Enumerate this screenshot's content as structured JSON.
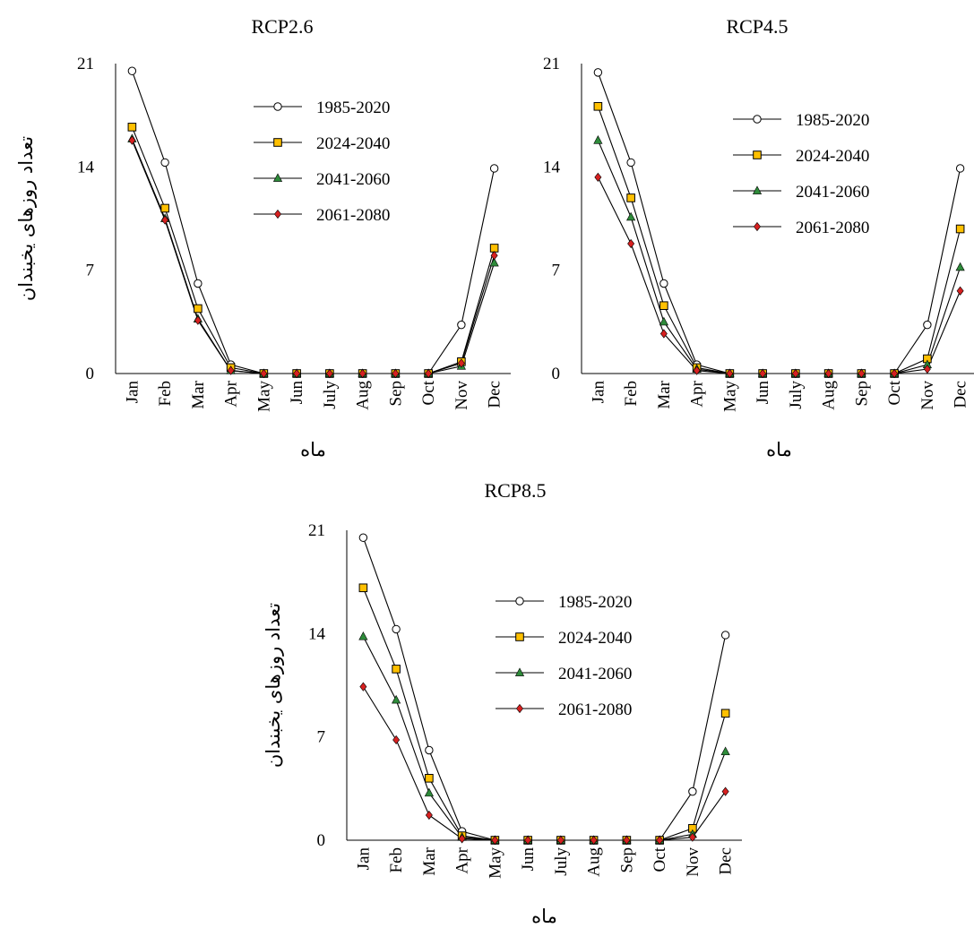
{
  "series_names": [
    "1985-2020",
    "2024-2040",
    "2041-2060",
    "2061-2080"
  ],
  "chart_data": [
    {
      "type": "line",
      "title": "RCP2.6",
      "xlabel": "ماه",
      "ylabel": "تعداد روزهای یخبندان",
      "categories": [
        "Jan",
        "Feb",
        "Mar",
        "Apr",
        "May",
        "Jun",
        "July",
        "Aug",
        "Sep",
        "Oct",
        "Nov",
        "Dec"
      ],
      "y_ticks": [
        "0",
        "7",
        "14",
        "21"
      ],
      "ylim": [
        0,
        21
      ],
      "legend_position": "top-right",
      "grid": false,
      "series": [
        {
          "name": "1985-2020",
          "values": [
            20.5,
            14.3,
            6.1,
            0.6,
            0,
            0,
            0,
            0,
            0,
            0,
            3.3,
            13.9
          ]
        },
        {
          "name": "2024-2040",
          "values": [
            16.7,
            11.2,
            4.4,
            0.4,
            0,
            0,
            0,
            0,
            0,
            0,
            0.8,
            8.5
          ]
        },
        {
          "name": "2041-2060",
          "values": [
            15.9,
            10.5,
            3.7,
            0.2,
            0,
            0,
            0,
            0,
            0,
            0,
            0.5,
            7.5
          ]
        },
        {
          "name": "2061-2080",
          "values": [
            15.8,
            10.4,
            3.6,
            0.2,
            0,
            0,
            0,
            0,
            0,
            0,
            0.7,
            8.0
          ]
        }
      ]
    },
    {
      "type": "line",
      "title": "RCP4.5",
      "xlabel": "ماه",
      "ylabel": "",
      "categories": [
        "Jan",
        "Feb",
        "Mar",
        "Apr",
        "May",
        "Jun",
        "July",
        "Aug",
        "Sep",
        "Oct",
        "Nov",
        "Dec"
      ],
      "y_ticks": [
        "0",
        "7",
        "14",
        "21"
      ],
      "ylim": [
        0,
        21
      ],
      "legend_position": "top-right",
      "grid": false,
      "series": [
        {
          "name": "1985-2020",
          "values": [
            20.4,
            14.3,
            6.1,
            0.6,
            0,
            0,
            0,
            0,
            0,
            0,
            3.3,
            13.9
          ]
        },
        {
          "name": "2024-2040",
          "values": [
            18.1,
            11.9,
            4.6,
            0.4,
            0,
            0,
            0,
            0,
            0,
            0,
            1.0,
            9.8
          ]
        },
        {
          "name": "2041-2060",
          "values": [
            15.8,
            10.6,
            3.5,
            0.3,
            0,
            0,
            0,
            0,
            0,
            0,
            0.6,
            7.2
          ]
        },
        {
          "name": "2061-2080",
          "values": [
            13.3,
            8.8,
            2.7,
            0.2,
            0,
            0,
            0,
            0,
            0,
            0,
            0.3,
            5.6
          ]
        }
      ]
    },
    {
      "type": "line",
      "title": "RCP8.5",
      "xlabel": "ماه",
      "ylabel": "تعداد روزهای یخبندان",
      "categories": [
        "Jan",
        "Feb",
        "Mar",
        "Apr",
        "May",
        "Jun",
        "July",
        "Aug",
        "Sep",
        "Oct",
        "Nov",
        "Dec"
      ],
      "y_ticks": [
        "0",
        "7",
        "14",
        "21"
      ],
      "ylim": [
        0,
        21
      ],
      "legend_position": "top-right",
      "grid": false,
      "series": [
        {
          "name": "1985-2020",
          "values": [
            20.5,
            14.3,
            6.1,
            0.6,
            0,
            0,
            0,
            0,
            0,
            0,
            3.3,
            13.9
          ]
        },
        {
          "name": "2024-2040",
          "values": [
            17.1,
            11.6,
            4.2,
            0.3,
            0,
            0,
            0,
            0,
            0,
            0,
            0.8,
            8.6
          ]
        },
        {
          "name": "2041-2060",
          "values": [
            13.8,
            9.5,
            3.2,
            0.2,
            0,
            0,
            0,
            0,
            0,
            0,
            0.4,
            6.0
          ]
        },
        {
          "name": "2061-2080",
          "values": [
            10.4,
            6.8,
            1.7,
            0.1,
            0,
            0,
            0,
            0,
            0,
            0,
            0.2,
            3.3
          ]
        }
      ]
    }
  ],
  "styles": {
    "line_color": "#000000",
    "markers": [
      "circle",
      "square",
      "triangle",
      "diamond"
    ],
    "marker_fills": [
      "#ffffff",
      "#ffc000",
      "#2e8b3a",
      "#d62020"
    ]
  }
}
